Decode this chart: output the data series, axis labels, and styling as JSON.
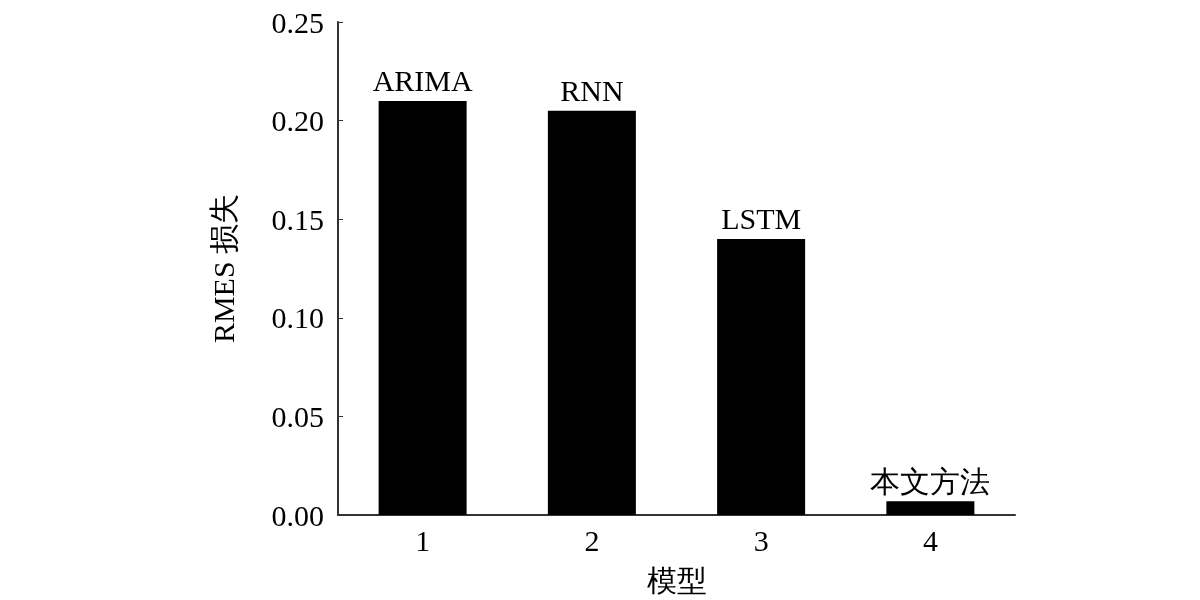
{
  "chart_data": {
    "type": "bar",
    "xlabel": "模型",
    "ylabel": "RMES 损失",
    "categories": [
      "1",
      "2",
      "3",
      "4"
    ],
    "values": [
      0.21,
      0.205,
      0.14,
      0.007
    ],
    "color": "#000000",
    "ylim": [
      0,
      0.25
    ],
    "yticks": [
      {
        "value": 0,
        "label": "0.00"
      },
      {
        "value": 0.05,
        "label": "0.05"
      },
      {
        "value": 0.1,
        "label": "0.10"
      },
      {
        "value": 0.15,
        "label": "0.15"
      },
      {
        "value": 0.2,
        "label": "0.20"
      },
      {
        "value": 0.25,
        "label": "0.25"
      }
    ],
    "annotations": [
      {
        "text": "ARIMA",
        "x": "1",
        "y": 0.21
      },
      {
        "text": "RNN",
        "x": "2",
        "y": 0.205
      },
      {
        "text": "LSTM",
        "x": "3",
        "y": 0.14
      },
      {
        "text": "本文方法",
        "x": "4",
        "y": 0.007
      }
    ],
    "grid": false
  }
}
